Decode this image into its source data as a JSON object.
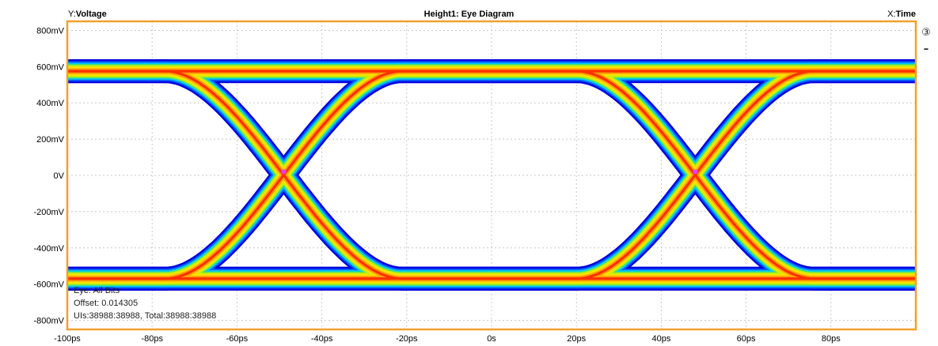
{
  "header": {
    "y_prefix": "Y:",
    "y_name": "Voltage",
    "title": "Height1: Eye Diagram",
    "x_prefix": "X:",
    "x_name": "Time"
  },
  "side": {
    "channel_label": "③",
    "minus_label": "–"
  },
  "info": {
    "line1": "Eye: All Bits",
    "line2": "Offset: 0.014305",
    "line3": "UIs:38988:38988, Total:38988:38988"
  },
  "colors": {
    "frame": "#f0a030",
    "grid": "#c8c8c8",
    "density": [
      "#0000e0",
      "#0060ff",
      "#00c8ff",
      "#40e080",
      "#c8f000",
      "#ffe000",
      "#ffa000",
      "#ff3000"
    ]
  },
  "chart_data": {
    "type": "heatmap",
    "title": "Height1: Eye Diagram",
    "xlabel": "Time",
    "ylabel": "Voltage",
    "xlim": [
      -100,
      100
    ],
    "ylim": [
      -850,
      850
    ],
    "x_unit": "ps",
    "y_unit": "mV",
    "x_ticks": [
      -100,
      -80,
      -60,
      -40,
      -20,
      0,
      20,
      40,
      60,
      80
    ],
    "x_tick_labels": [
      "-100ps",
      "-80ps",
      "-60ps",
      "-40ps",
      "-20ps",
      "0s",
      "20ps",
      "40ps",
      "60ps",
      "80ps"
    ],
    "y_ticks": [
      800,
      600,
      400,
      200,
      0,
      -200,
      -400,
      -600,
      -800
    ],
    "y_tick_labels": [
      "800mV",
      "600mV",
      "400mV",
      "200mV",
      "0V",
      "-200mV",
      "-400mV",
      "-600mV",
      "-800mV"
    ],
    "grid": true,
    "high_level_mV": 575,
    "low_level_mV": -570,
    "crossing_points": [
      {
        "x": -49,
        "y": 20
      },
      {
        "x": 48,
        "y": 20
      }
    ],
    "unit_interval_ps": 97,
    "rise_time_ps": 28
  }
}
